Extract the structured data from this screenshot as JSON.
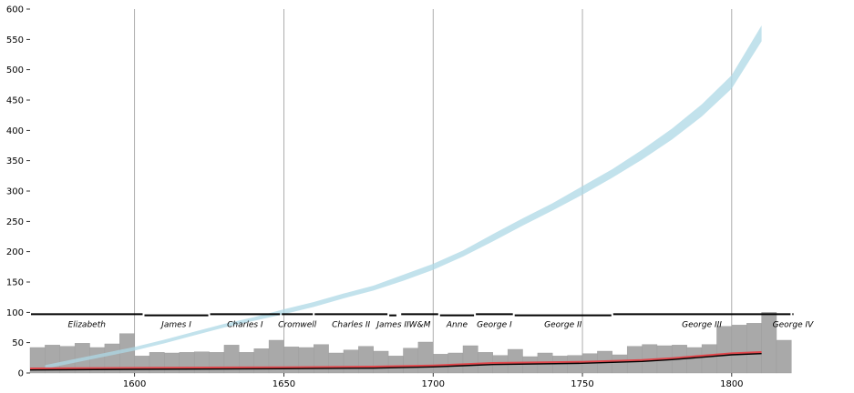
{
  "chart_data": {
    "type": "bar",
    "title": "",
    "xlabel": "",
    "ylabel": "",
    "xlim": [
      1565,
      1826
    ],
    "ylim": [
      0,
      600
    ],
    "grid": "vertical lines at x ticks",
    "legend": "none",
    "x_ticks": [
      "1600",
      "1650",
      "1700",
      "1750",
      "1800"
    ],
    "x_tick_values": [
      1600,
      1650,
      1700,
      1750,
      1800
    ],
    "y_ticks": [
      "0",
      "50",
      "100",
      "150",
      "200",
      "250",
      "300",
      "350",
      "400",
      "450",
      "500",
      "550",
      "600"
    ],
    "y_tick_values": [
      0,
      50,
      100,
      150,
      200,
      250,
      300,
      350,
      400,
      450,
      500,
      550,
      600
    ],
    "bins": {
      "start": 1565,
      "width": 5,
      "values": [
        42,
        46,
        44,
        49,
        42,
        48,
        65,
        28,
        34,
        33,
        34,
        35,
        34,
        46,
        34,
        40,
        54,
        43,
        42,
        47,
        33,
        38,
        44,
        36,
        28,
        41,
        51,
        31,
        33,
        45,
        34,
        29,
        39,
        27,
        33,
        28,
        29,
        32,
        36,
        30,
        44,
        47,
        45,
        46,
        42,
        47,
        77,
        79,
        82,
        100,
        54
      ]
    },
    "price_band": {
      "x": [
        1570,
        1580,
        1590,
        1600,
        1610,
        1620,
        1630,
        1640,
        1650,
        1660,
        1670,
        1680,
        1690,
        1700,
        1710,
        1720,
        1730,
        1740,
        1750,
        1760,
        1770,
        1780,
        1790,
        1800,
        1810
      ],
      "y": [
        10,
        20,
        30,
        40,
        52,
        65,
        78,
        89,
        101,
        113,
        127,
        140,
        157,
        175,
        197,
        223,
        249,
        274,
        301,
        329,
        360,
        394,
        433,
        480,
        560
      ],
      "half_width": [
        3,
        3,
        3,
        3,
        3,
        3,
        3,
        3,
        4,
        4,
        4,
        4,
        5,
        5,
        5,
        6,
        6,
        6,
        7,
        7,
        8,
        9,
        10,
        11,
        13
      ],
      "color": "#add8e6"
    },
    "wages_black": {
      "x": [
        1565,
        1600,
        1650,
        1680,
        1700,
        1710,
        1720,
        1750,
        1770,
        1780,
        1790,
        1800,
        1810
      ],
      "y": [
        5,
        6,
        7,
        8,
        10,
        12,
        14,
        16,
        19,
        22,
        26,
        30,
        32
      ],
      "color": "#000000"
    },
    "wages_red": {
      "x": [
        1565,
        1600,
        1650,
        1680,
        1700,
        1710,
        1720,
        1750,
        1770,
        1780,
        1790,
        1800,
        1810
      ],
      "y": [
        7,
        8,
        9,
        10,
        12,
        14,
        16,
        18,
        21,
        24,
        28,
        32,
        34
      ],
      "color": "#e0474c"
    },
    "bar_color": "#a9a9a9",
    "reigns": [
      {
        "name": "Elizabeth",
        "start": 1565,
        "end": 1603,
        "level": 97
      },
      {
        "name": "James I",
        "start": 1603,
        "end": 1625,
        "level": 95
      },
      {
        "name": "Charles I",
        "start": 1625,
        "end": 1649,
        "level": 97
      },
      {
        "name": "Cromwell",
        "start": 1649,
        "end": 1660,
        "level": 97
      },
      {
        "name": "Charles II",
        "start": 1660,
        "end": 1685,
        "level": 97
      },
      {
        "name": "James II",
        "start": 1685,
        "end": 1688,
        "level": 95
      },
      {
        "name": "W&M",
        "start": 1689,
        "end": 1702,
        "level": 97
      },
      {
        "name": "Anne",
        "start": 1702,
        "end": 1714,
        "level": 95
      },
      {
        "name": "George I",
        "start": 1714,
        "end": 1727,
        "level": 97
      },
      {
        "name": "George II",
        "start": 1727,
        "end": 1760,
        "level": 95
      },
      {
        "name": "George III",
        "start": 1760,
        "end": 1820,
        "level": 97
      },
      {
        "name": "George IV",
        "start": 1820,
        "end": 1821,
        "level": 97
      }
    ]
  }
}
